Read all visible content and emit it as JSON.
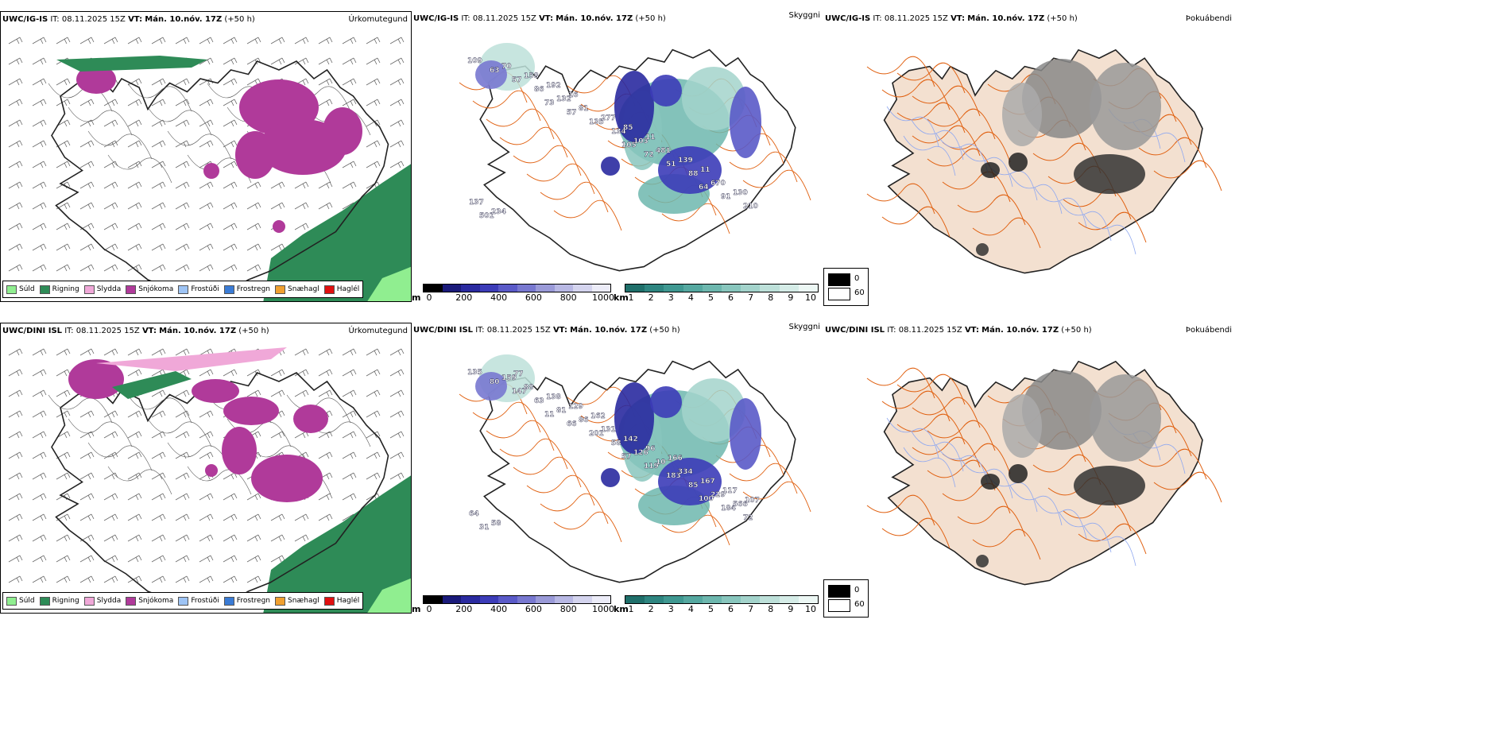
{
  "rows": [
    {
      "model": "UWC/IG-IS",
      "it": "IT: 08.11.2025 15Z",
      "vt_label": "VT:",
      "vt": "Mán. 10.nóv. 17Z",
      "lead": "(+50 h)"
    },
    {
      "model": "UWC/DINI ISL",
      "it": "IT: 08.11.2025 15Z",
      "vt_label": "VT:",
      "vt": "Mán. 10.nóv. 17Z",
      "lead": "(+50 h)"
    }
  ],
  "panel_titles": {
    "precip_type": "Úrkomutegund",
    "cloud": "Skyggni",
    "fog": "Þokuábendi"
  },
  "precip_legend": [
    {
      "label": "Súld",
      "color": "#90ee90"
    },
    {
      "label": "Rigning",
      "color": "#2e8b57"
    },
    {
      "label": "Slydda",
      "color": "#f0a8d8"
    },
    {
      "label": "Snjókoma",
      "color": "#b03a9a"
    },
    {
      "label": "Frostúði",
      "color": "#9ec4f5"
    },
    {
      "label": "Frostregn",
      "color": "#3a7bd5"
    },
    {
      "label": "Snæhagl",
      "color": "#f0a030"
    },
    {
      "label": "Haglél",
      "color": "#e01010"
    }
  ],
  "cloud_base_scale": {
    "unit": "m",
    "ticks": [
      "0",
      "200",
      "400",
      "600",
      "800",
      "1000"
    ],
    "colors": [
      "#000000",
      "#1a1a7a",
      "#2a2aa0",
      "#3c3cb8",
      "#5a5ac8",
      "#7878d0",
      "#9a9ad8",
      "#b8b8e4",
      "#d4d4ee",
      "#ececf8"
    ]
  },
  "visibility_scale": {
    "unit": "km",
    "ticks": [
      "1",
      "2",
      "3",
      "4",
      "5",
      "6",
      "7",
      "8",
      "9",
      "10"
    ],
    "colors": [
      "#1f6f6a",
      "#2e8580",
      "#3f9891",
      "#55a8a0",
      "#6db7ae",
      "#88c6bd",
      "#a3d3cb",
      "#bde0d9",
      "#d5ece7",
      "#ecf7f4"
    ]
  },
  "fog_legend": [
    {
      "label": "0",
      "color": "#000000"
    },
    {
      "label": "60",
      "color": "#ffffff"
    }
  ],
  "cloud_labels_top": [
    "109",
    "73",
    "105",
    "64",
    "63",
    "57",
    "72",
    "91",
    "57",
    "135",
    "51",
    "210",
    "86",
    "134",
    "88",
    "501",
    "132",
    "103",
    "670",
    "70",
    "81",
    "481",
    "130",
    "158",
    "277",
    "139",
    "137",
    "192",
    "85",
    "11",
    "234",
    "16",
    "11"
  ],
  "cloud_labels_bottom": [
    "135",
    "11",
    "57",
    "100",
    "80",
    "66",
    "119",
    "184",
    "147",
    "201",
    "183",
    "72",
    "63",
    "58",
    "85",
    "31",
    "81",
    "126",
    "229",
    "159",
    "86",
    "10",
    "566",
    "88",
    "131",
    "334",
    "64",
    "138",
    "142",
    "167",
    "58",
    "129",
    "96",
    "117",
    "77",
    "162",
    "166",
    "107"
  ],
  "colors": {
    "land": "#f3e0d0",
    "road": "#e06010",
    "river": "#8fa8f0",
    "outline": "#111111",
    "snow": "#b03a9a",
    "rain": "#2e8b57"
  }
}
